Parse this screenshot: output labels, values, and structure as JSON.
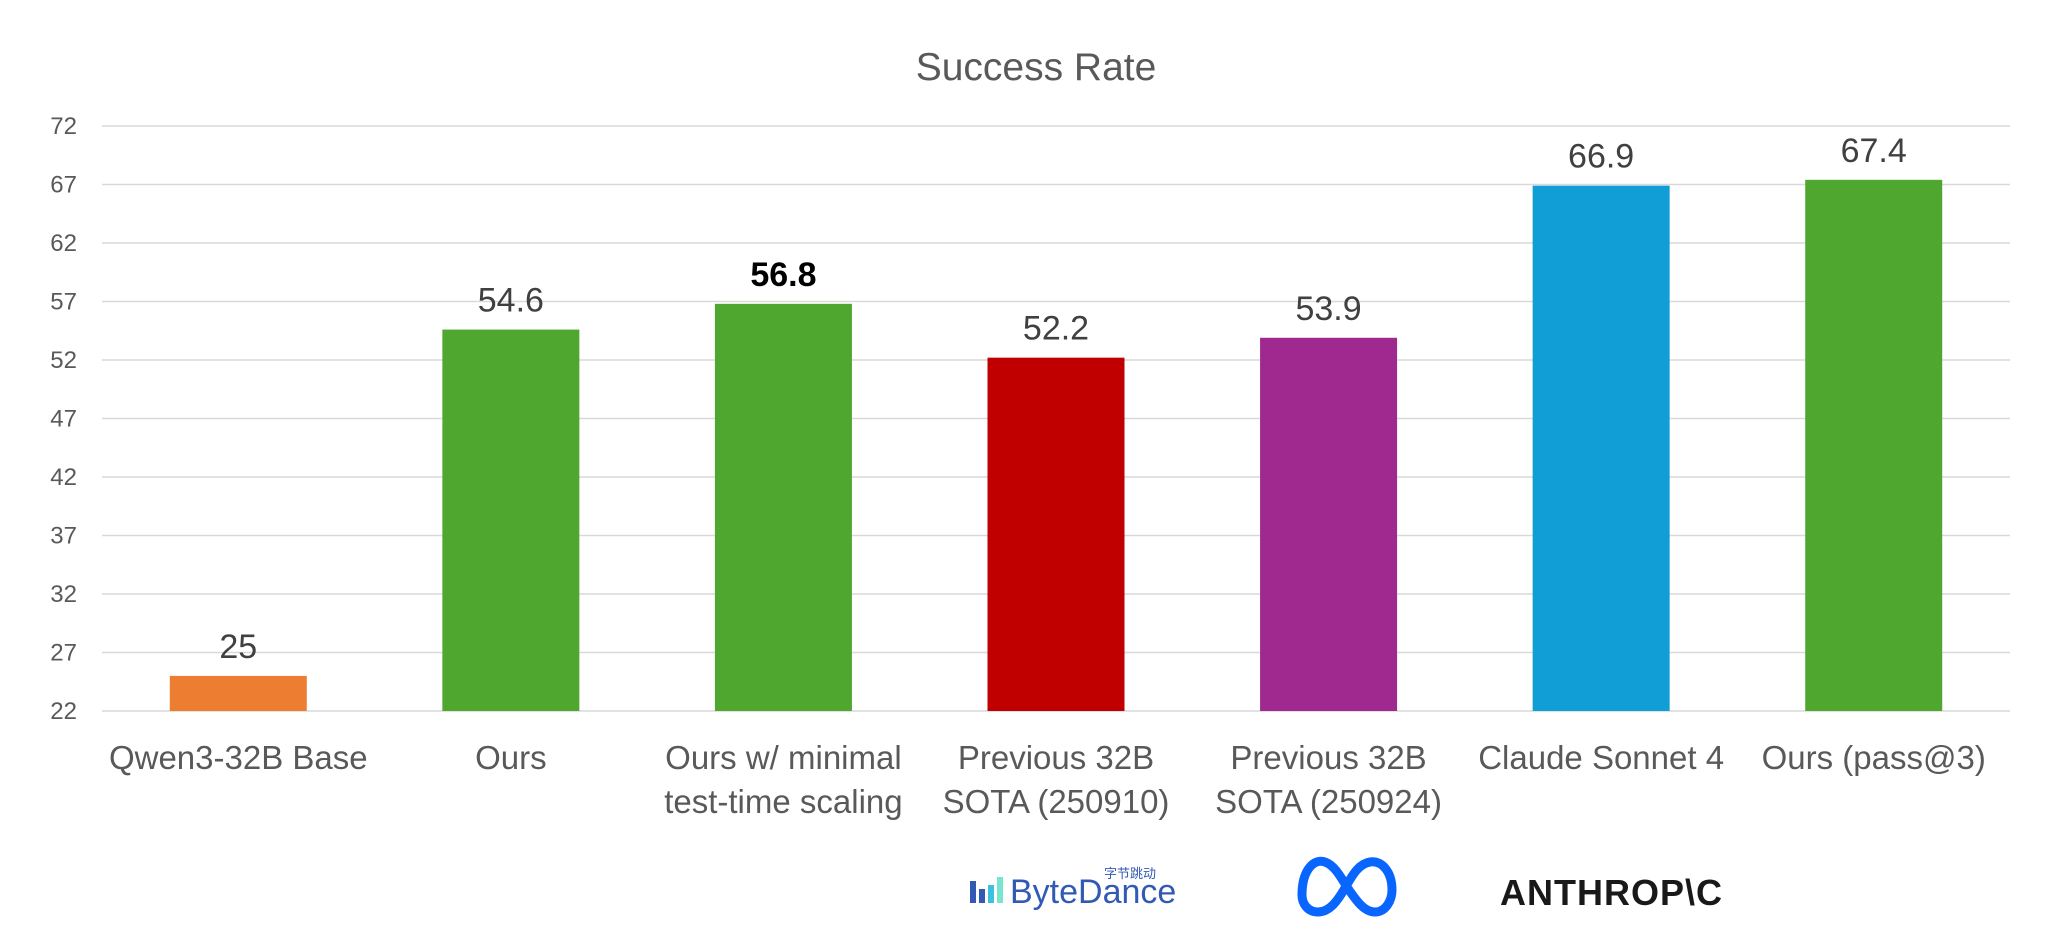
{
  "chart_data": {
    "type": "bar",
    "title": "Success Rate",
    "xlabel": "",
    "ylabel": "",
    "ylim": [
      22,
      72
    ],
    "yticks": [
      22,
      27,
      32,
      37,
      42,
      47,
      52,
      57,
      62,
      67,
      72
    ],
    "grid": true,
    "legend": "none",
    "categories": [
      [
        "Qwen3-32B Base"
      ],
      [
        "Ours"
      ],
      [
        "Ours w/ minimal",
        "test-time scaling"
      ],
      [
        "Previous 32B",
        "SOTA (250910)"
      ],
      [
        "Previous 32B",
        "SOTA (250924)"
      ],
      [
        "Claude Sonnet 4"
      ],
      [
        "Ours (pass@3)"
      ]
    ],
    "values": [
      25,
      54.6,
      56.8,
      52.2,
      53.9,
      66.9,
      67.4
    ],
    "value_labels": [
      "25",
      "54.6",
      "56.8",
      "52.2",
      "53.9",
      "66.9",
      "67.4"
    ],
    "highlight_bold": [
      false,
      false,
      true,
      false,
      false,
      false,
      false
    ],
    "colors": [
      "#ed7d31",
      "#50a72f",
      "#50a72f",
      "#c00000",
      "#a0298f",
      "#119ed7",
      "#50a72f"
    ]
  },
  "logos": {
    "bytedance": {
      "name": "ByteDance",
      "chinese": "字节跳动",
      "color": "#325ab4"
    },
    "meta": {
      "color": "#0866ff"
    },
    "anthropic": {
      "name": "ANTHROP\\C",
      "color": "#191919"
    }
  }
}
